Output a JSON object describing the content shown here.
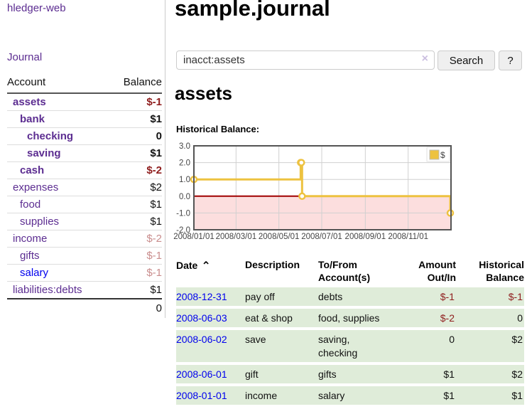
{
  "app_title": "hledger-web",
  "nav": {
    "journal": "Journal"
  },
  "page": {
    "title": "sample.journal"
  },
  "search": {
    "value": "inacct:assets",
    "clear_icon": "×",
    "search_button": "Search",
    "help_button": "?"
  },
  "theme": {
    "link_purple": "#5c2d91",
    "link_blue": "#0000ee",
    "negative_red": "#8f1d1d",
    "faded_negative_red": "#c98d8d",
    "row_green": "#dfecd9",
    "series_gold": "#EDC240"
  },
  "sidebar": {
    "headers": {
      "account": "Account",
      "balance": "Balance"
    },
    "accounts": [
      {
        "name": "assets",
        "indent": 1,
        "balance": "$-1",
        "in_register": true,
        "balance_style": "negative",
        "link_style": "purple"
      },
      {
        "name": "bank",
        "indent": 2,
        "balance": "$1",
        "in_register": true,
        "balance_style": "normal",
        "link_style": "purple"
      },
      {
        "name": "checking",
        "indent": 3,
        "balance": "0",
        "in_register": true,
        "balance_style": "normal",
        "link_style": "purple"
      },
      {
        "name": "saving",
        "indent": 3,
        "balance": "$1",
        "in_register": true,
        "balance_style": "normal",
        "link_style": "purple"
      },
      {
        "name": "cash",
        "indent": 2,
        "balance": "$-2",
        "in_register": true,
        "balance_style": "negative",
        "link_style": "purple"
      },
      {
        "name": "expenses",
        "indent": 1,
        "balance": "$2",
        "in_register": false,
        "balance_style": "normal",
        "link_style": "purple"
      },
      {
        "name": "food",
        "indent": 2,
        "balance": "$1",
        "in_register": false,
        "balance_style": "normal",
        "link_style": "purple"
      },
      {
        "name": "supplies",
        "indent": 2,
        "balance": "$1",
        "in_register": false,
        "balance_style": "normal",
        "link_style": "purple"
      },
      {
        "name": "income",
        "indent": 1,
        "balance": "$-2",
        "in_register": false,
        "balance_style": "faded-negative",
        "link_style": "purple"
      },
      {
        "name": "gifts",
        "indent": 2,
        "balance": "$-1",
        "in_register": false,
        "balance_style": "faded-negative",
        "link_style": "purple"
      },
      {
        "name": "salary",
        "indent": 2,
        "balance": "$-1",
        "in_register": false,
        "balance_style": "faded-negative",
        "link_style": "blue"
      },
      {
        "name": "liabilities:debts",
        "indent": 1,
        "balance": "$1",
        "in_register": false,
        "balance_style": "normal",
        "link_style": "purple"
      }
    ],
    "total": "0"
  },
  "register": {
    "account_heading": "assets",
    "chart_heading": "Historical Balance:",
    "table": {
      "headers": [
        {
          "line1": "Date",
          "line2": "",
          "align": "left",
          "sort_icon": "⌃"
        },
        {
          "line1": "Description",
          "line2": "",
          "align": "left"
        },
        {
          "line1": "To/From",
          "line2": "Account(s)",
          "align": "left"
        },
        {
          "line1": "Amount",
          "line2": "Out/In",
          "align": "right"
        },
        {
          "line1": "Historical",
          "line2": "Balance",
          "align": "right"
        }
      ],
      "rows": [
        {
          "date": "2008-12-31",
          "description": "pay off",
          "accounts": "debts",
          "amount": "$-1",
          "amount_negative": true,
          "balance": "$-1",
          "balance_negative": true
        },
        {
          "date": "2008-06-03",
          "description": "eat & shop",
          "accounts": "food, supplies",
          "amount": "$-2",
          "amount_negative": true,
          "balance": "0",
          "balance_negative": false
        },
        {
          "date": "2008-06-02",
          "description": "save",
          "accounts": "saving, checking",
          "amount": "0",
          "amount_negative": false,
          "balance": "$2",
          "balance_negative": false
        },
        {
          "date": "2008-06-01",
          "description": "gift",
          "accounts": "gifts",
          "amount": "$1",
          "amount_negative": false,
          "balance": "$2",
          "balance_negative": false
        },
        {
          "date": "2008-01-01",
          "description": "income",
          "accounts": "salary",
          "amount": "$1",
          "amount_negative": false,
          "balance": "$1",
          "balance_negative": false
        }
      ]
    }
  },
  "chart_data": {
    "type": "line",
    "title": "Historical Balance:",
    "step": true,
    "series": [
      {
        "name": "$",
        "color": "#EDC240",
        "points": [
          [
            "2008-01-01",
            1
          ],
          [
            "2008-06-01",
            2
          ],
          [
            "2008-06-02",
            2
          ],
          [
            "2008-06-03",
            0
          ],
          [
            "2008-12-31",
            -1
          ]
        ]
      }
    ],
    "xlim": [
      "2008-01-01",
      "2009-01-01"
    ],
    "ylim": [
      -2,
      3
    ],
    "y_ticks": [
      3,
      2,
      1,
      0,
      -1,
      -2
    ],
    "y_tick_labels": [
      "3.0",
      "2.0",
      "1.0",
      "0.0",
      "-1.0",
      "-2.0"
    ],
    "x_ticks": [
      "2008-01-01",
      "2008-03-01",
      "2008-05-01",
      "2008-07-01",
      "2008-09-01",
      "2008-11-01"
    ],
    "x_tick_labels": [
      "2008/01/01",
      "2008/03/01",
      "2008/05/01",
      "2008/07/01",
      "2008/09/01",
      "2008/11/01"
    ],
    "legend": {
      "label": "$",
      "position": "top-right"
    },
    "grid": true,
    "colors": {
      "grid": "#d0d0d0",
      "border": "#545454",
      "zero_line": "#a00000",
      "negative_region": "#fcdede",
      "marker_fill": "#ffffff",
      "tick_text": "#444444"
    }
  }
}
